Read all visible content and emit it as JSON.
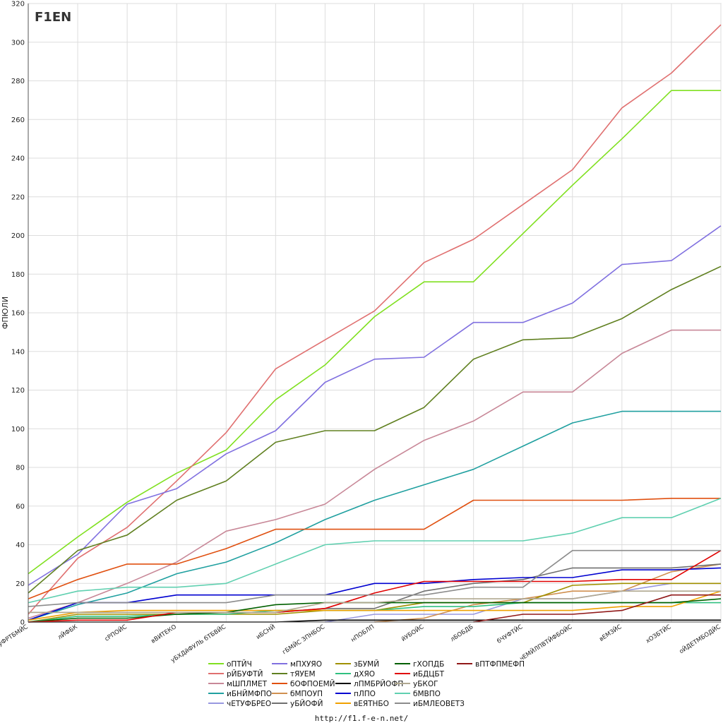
{
  "page": {
    "logo": "F1EN",
    "footer_url": "http://f1.f-e-n.net/"
  },
  "chart_data": {
    "type": "line",
    "title": "",
    "xlabel": "",
    "ylabel": "ФПЮЛИ",
    "ylim": [
      0,
      320
    ],
    "y_ticks": [
      0,
      20,
      40,
      60,
      80,
      100,
      120,
      140,
      160,
      180,
      200,
      220,
      240,
      260,
      280,
      300,
      320
    ],
    "grid": true,
    "legend_position": "bottom",
    "categories": [
      "уФРТБМЙС",
      "лЙФБК",
      "сРПОЙС",
      "вВИТЕКО",
      "уБХДйФУЛЬ бТБВЙС",
      "иБСНЙ",
      "гБМЙС ЗПНБОС",
      "нПОБЛП",
      "йУБОЙС",
      "лБОБДБ",
      "бЧУФТЙС",
      "чЕМЙЛПВТЙФБОЙС",
      "вЕМЗЙС",
      "хОЗБТЙС",
      "оЙДЕТМБОДЙС"
    ],
    "series": [
      {
        "name": "оПТЙЧ",
        "color": "#80e020",
        "values": [
          25,
          44,
          62,
          77,
          89,
          115,
          133,
          158,
          176,
          176,
          201,
          226,
          250,
          275,
          275
        ]
      },
      {
        "name": "рЙБУФТЙ",
        "color": "#e07070",
        "values": [
          4,
          33,
          49,
          73,
          98,
          131,
          146,
          161,
          186,
          198,
          216,
          234,
          266,
          284,
          309
        ]
      },
      {
        "name": "мШПЛМЕТ",
        "color": "#c88898",
        "values": [
          2,
          10,
          20,
          31,
          47,
          53,
          61,
          79,
          94,
          104,
          119,
          119,
          139,
          151,
          151
        ]
      },
      {
        "name": "иБНЙМФПО",
        "color": "#20a0a0",
        "values": [
          1,
          9,
          15,
          25,
          31,
          41,
          53,
          63,
          71,
          79,
          91,
          103,
          109,
          109,
          109
        ]
      },
      {
        "name": "чЕТУФБРЕО",
        "color": "#9898e0",
        "values": [
          null,
          null,
          null,
          null,
          null,
          null,
          0,
          4,
          4,
          4,
          12,
          12,
          16,
          20,
          20
        ]
      },
      {
        "name": "мПХУЯО",
        "color": "#8070e0",
        "values": [
          19,
          35,
          61,
          69,
          87,
          99,
          124,
          136,
          137,
          155,
          155,
          165,
          185,
          187,
          205
        ]
      },
      {
        "name": "тЯУЕМ",
        "color": "#608020",
        "values": [
          15,
          37,
          45,
          63,
          73,
          93,
          99,
          99,
          111,
          136,
          146,
          147,
          157,
          172,
          184
        ]
      },
      {
        "name": "бОФПОЕМЙ",
        "color": "#e05010",
        "values": [
          12,
          22,
          30,
          30,
          38,
          48,
          48,
          48,
          48,
          63,
          63,
          63,
          63,
          64,
          64
        ]
      },
      {
        "name": "бМПОУП",
        "color": "#d09050",
        "values": [
          null,
          null,
          null,
          null,
          null,
          null,
          null,
          0,
          2,
          9,
          12,
          16,
          16,
          26,
          30
        ]
      },
      {
        "name": "уБЙОФЙ",
        "color": "#707070",
        "values": [
          5,
          5,
          5,
          5,
          5,
          5,
          7,
          7,
          16,
          20,
          22,
          28,
          28,
          28,
          30
        ]
      },
      {
        "name": "зБУМЙ",
        "color": "#a09000",
        "values": [
          0,
          4,
          4,
          4,
          4,
          4,
          6,
          6,
          10,
          10,
          10,
          19,
          20,
          20,
          20
        ]
      },
      {
        "name": "дХЯО",
        "color": "#30c080",
        "values": [
          0,
          3,
          3,
          4,
          4,
          6,
          6,
          6,
          8,
          8,
          10,
          10,
          10,
          10,
          10
        ]
      },
      {
        "name": "лПМБРЙОФП",
        "color": "#000000",
        "values": [
          0,
          0,
          0,
          0,
          0,
          0,
          1,
          1,
          1,
          1,
          1,
          1,
          1,
          1,
          1
        ]
      },
      {
        "name": "пЛПО",
        "color": "#0000d0",
        "values": [
          1,
          10,
          10,
          14,
          14,
          14,
          14,
          20,
          20,
          22,
          23,
          23,
          27,
          27,
          28
        ]
      },
      {
        "name": "вЕЯТНБО",
        "color": "#f0a000",
        "values": [
          1,
          5,
          6,
          6,
          6,
          6,
          6,
          6,
          6,
          6,
          6,
          6,
          8,
          8,
          16
        ]
      },
      {
        "name": "гХОПДБ",
        "color": "#006000",
        "values": [
          0,
          2,
          2,
          4,
          5,
          9,
          10,
          10,
          10,
          10,
          10,
          10,
          10,
          10,
          12
        ]
      },
      {
        "name": "иБДЦБТ",
        "color": "#e00000",
        "values": [
          0,
          1,
          1,
          5,
          5,
          5,
          7,
          15,
          21,
          21,
          21,
          21,
          22,
          22,
          37
        ]
      },
      {
        "name": "уБКОГ",
        "color": "#b0a890",
        "values": [
          5,
          5,
          5,
          5,
          5,
          5,
          10,
          10,
          12,
          12,
          12,
          12,
          16,
          16,
          16
        ]
      },
      {
        "name": "бМВПО",
        "color": "#60d0b0",
        "values": [
          10,
          16,
          18,
          18,
          20,
          30,
          40,
          42,
          42,
          42,
          42,
          46,
          54,
          54,
          64
        ]
      },
      {
        "name": "иБМЛЕОВЕТЗ",
        "color": "#8c8c8c",
        "values": [
          8,
          10,
          10,
          10,
          10,
          14,
          14,
          14,
          14,
          18,
          18,
          37,
          37,
          37,
          37
        ]
      },
      {
        "name": "вПТФПМЕФП",
        "color": "#901818",
        "values": [
          null,
          null,
          null,
          null,
          null,
          null,
          null,
          null,
          null,
          0,
          4,
          4,
          6,
          14,
          14
        ]
      }
    ]
  }
}
